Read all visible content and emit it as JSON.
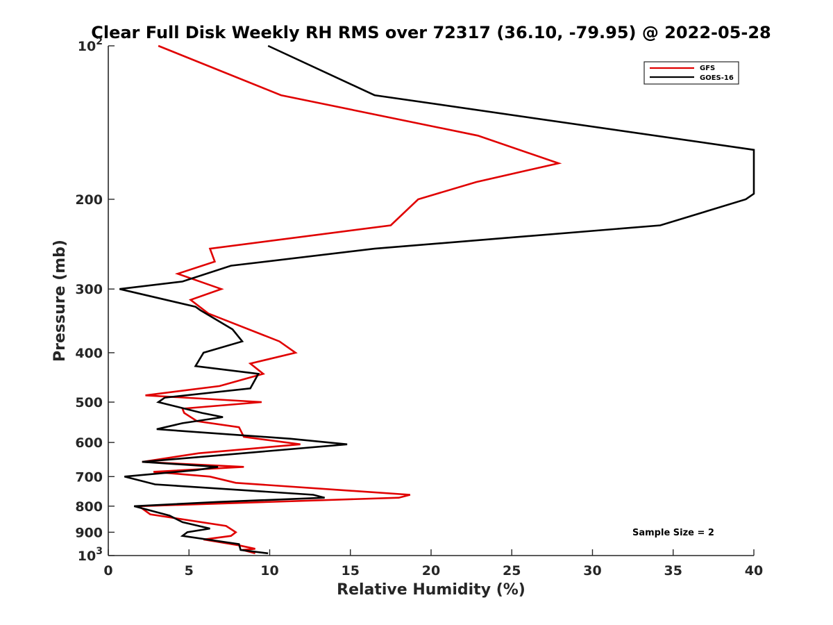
{
  "chart_data": {
    "type": "line",
    "title": "Clear Full Disk Weekly RH RMS over 72317 (36.10, -79.95) @ 2022-05-28",
    "xlabel": "Relative Humidity (%)",
    "ylabel": "Pressure (mb)",
    "xlim": [
      0,
      40
    ],
    "ylim": [
      1000,
      100
    ],
    "yscale": "log",
    "grid": false,
    "legend_position": "top-right",
    "x_ticks": [
      "0",
      "5",
      "10",
      "15",
      "20",
      "25",
      "30",
      "35",
      "40"
    ],
    "x_tick_values": [
      0,
      5,
      10,
      15,
      20,
      25,
      30,
      35,
      40
    ],
    "y_ticks": [
      {
        "value": 100,
        "base": "10",
        "exp": "2"
      },
      {
        "value": 200,
        "label": "200"
      },
      {
        "value": 300,
        "label": "300"
      },
      {
        "value": 400,
        "label": "400"
      },
      {
        "value": 500,
        "label": "500"
      },
      {
        "value": 600,
        "label": "600"
      },
      {
        "value": 700,
        "label": "700"
      },
      {
        "value": 800,
        "label": "800"
      },
      {
        "value": 900,
        "label": "900"
      },
      {
        "value": 1000,
        "base": "10",
        "exp": "3"
      }
    ],
    "annotation": "Sample Size = 2",
    "series": [
      {
        "name": "GFS",
        "color": "#e00000",
        "points": [
          [
            3.1,
            100
          ],
          [
            10.7,
            125
          ],
          [
            22.9,
            150
          ],
          [
            27.9,
            170
          ],
          [
            22.8,
            185
          ],
          [
            19.2,
            200
          ],
          [
            17.5,
            225
          ],
          [
            6.3,
            250
          ],
          [
            6.6,
            265
          ],
          [
            4.3,
            280
          ],
          [
            7.0,
            300
          ],
          [
            5.1,
            315
          ],
          [
            6.2,
            335
          ],
          [
            10.6,
            380
          ],
          [
            11.6,
            400
          ],
          [
            8.8,
            420
          ],
          [
            9.6,
            440
          ],
          [
            6.9,
            465
          ],
          [
            2.3,
            485
          ],
          [
            9.5,
            500
          ],
          [
            4.6,
            515
          ],
          [
            4.7,
            525
          ],
          [
            5.5,
            545
          ],
          [
            8.1,
            560
          ],
          [
            8.4,
            585
          ],
          [
            11.9,
            605
          ],
          [
            5.6,
            630
          ],
          [
            2.1,
            655
          ],
          [
            8.4,
            670
          ],
          [
            2.8,
            685
          ],
          [
            6.3,
            700
          ],
          [
            7.9,
            720
          ],
          [
            18.7,
            760
          ],
          [
            18.0,
            770
          ],
          [
            1.9,
            800
          ],
          [
            2.6,
            830
          ],
          [
            7.3,
            875
          ],
          [
            7.9,
            900
          ],
          [
            7.6,
            915
          ],
          [
            5.9,
            930
          ],
          [
            8.1,
            955
          ],
          [
            9.1,
            970
          ],
          [
            8.3,
            975
          ],
          [
            9.1,
            990
          ]
        ]
      },
      {
        "name": "GOES-16",
        "color": "#000000",
        "points": [
          [
            9.9,
            100
          ],
          [
            16.5,
            125
          ],
          [
            40,
            160
          ],
          [
            40,
            195
          ],
          [
            39.5,
            200
          ],
          [
            34.2,
            225
          ],
          [
            16.5,
            250
          ],
          [
            7.6,
            270
          ],
          [
            4.6,
            290
          ],
          [
            0.7,
            300
          ],
          [
            5.4,
            325
          ],
          [
            5.7,
            330
          ],
          [
            7.7,
            360
          ],
          [
            8.3,
            380
          ],
          [
            5.9,
            400
          ],
          [
            5.4,
            425
          ],
          [
            9.3,
            440
          ],
          [
            8.8,
            470
          ],
          [
            3.5,
            490
          ],
          [
            3.1,
            500
          ],
          [
            5.8,
            525
          ],
          [
            7.1,
            535
          ],
          [
            4.6,
            550
          ],
          [
            3.0,
            565
          ],
          [
            11.3,
            590
          ],
          [
            14.8,
            605
          ],
          [
            2.1,
            655
          ],
          [
            6.8,
            670
          ],
          [
            5.4,
            680
          ],
          [
            1.0,
            700
          ],
          [
            2.9,
            725
          ],
          [
            12.7,
            760
          ],
          [
            13.4,
            770
          ],
          [
            6.8,
            785
          ],
          [
            1.6,
            800
          ],
          [
            3.8,
            835
          ],
          [
            4.6,
            860
          ],
          [
            6.3,
            885
          ],
          [
            4.9,
            900
          ],
          [
            4.6,
            915
          ],
          [
            8.1,
            950
          ],
          [
            8.2,
            975
          ],
          [
            9.9,
            990
          ]
        ]
      }
    ]
  }
}
